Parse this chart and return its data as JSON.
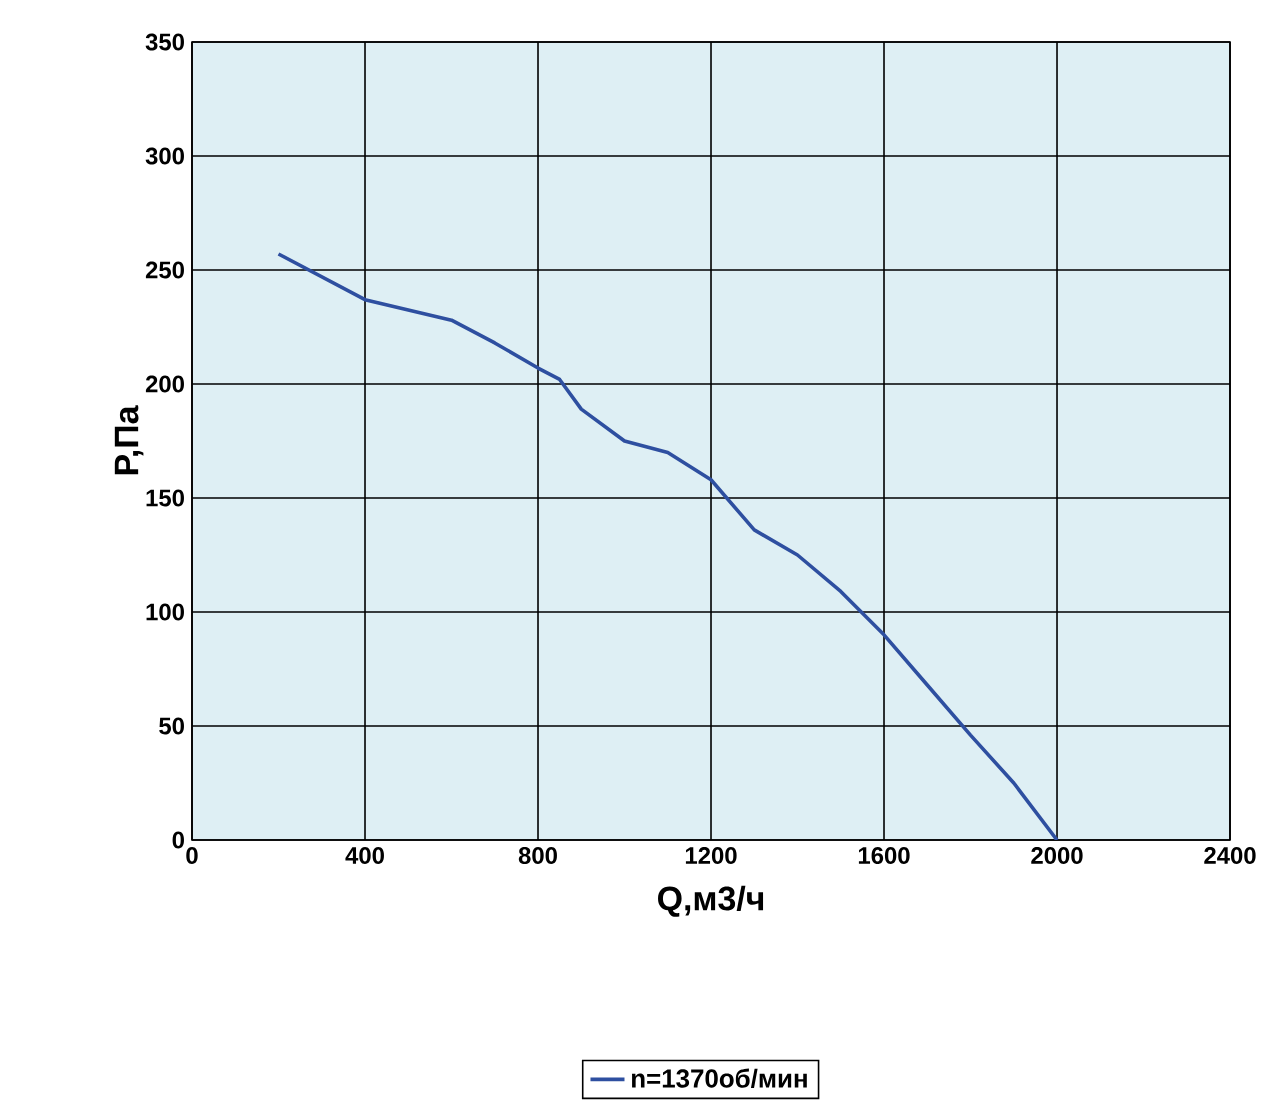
{
  "chart_data": {
    "type": "line",
    "xlabel": "Q,м3/ч",
    "ylabel": "P,Па",
    "xlim": [
      0,
      2400
    ],
    "ylim": [
      0,
      350
    ],
    "xticks": [
      0,
      400,
      800,
      1200,
      1600,
      2000,
      2400
    ],
    "yticks": [
      0,
      50,
      100,
      150,
      200,
      250,
      300,
      350
    ],
    "grid": true,
    "legend": "bottom",
    "marker": "none",
    "line_style": "solid",
    "series": [
      {
        "name": "n=1370об/мин",
        "color": "#2e4fa0",
        "x": [
          200,
          400,
          600,
          700,
          800,
          850,
          900,
          1000,
          1100,
          1200,
          1300,
          1400,
          1500,
          1600,
          1700,
          1800,
          1900,
          2000
        ],
        "values": [
          257,
          237,
          228,
          218,
          207,
          202,
          189,
          175,
          170,
          158,
          136,
          125,
          109,
          90,
          68,
          46,
          25,
          0
        ]
      }
    ]
  }
}
